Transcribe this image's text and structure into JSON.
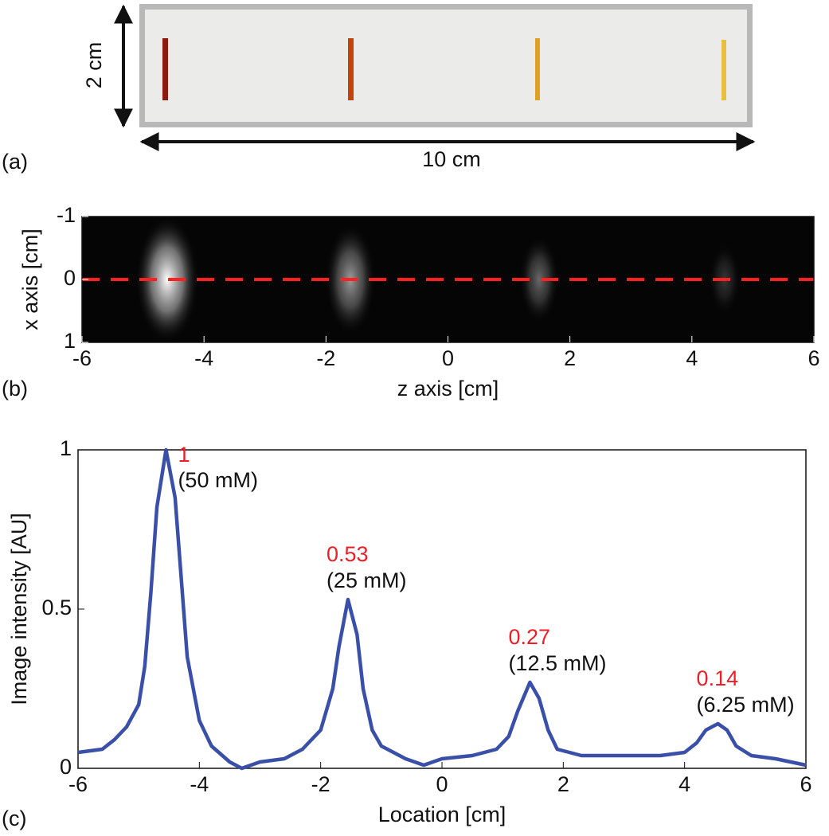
{
  "panel_a": {
    "label": "(a)",
    "height_label": "2 cm",
    "width_label": "10 cm"
  },
  "chart_data": [
    {
      "type": "image",
      "label": "(b)",
      "x_label": "z axis [cm]",
      "y_label": "x axis [cm]",
      "xlim": [
        -6,
        6
      ],
      "xticks": [
        -6,
        -4,
        -2,
        0,
        2,
        4,
        6
      ],
      "ylim": [
        1,
        -1
      ],
      "yticks": [
        -1,
        0,
        1
      ],
      "cut_line": {
        "value": 0,
        "color": "#ff2020"
      }
    },
    {
      "type": "line",
      "label": "(c)",
      "x_label": "Location [cm]",
      "y_label": "Image intensity [AU]",
      "xlim": [
        -6,
        6
      ],
      "xticks": [
        -6,
        -4,
        -2,
        0,
        2,
        4,
        6
      ],
      "ylim": [
        0,
        1
      ],
      "yticks": [
        0,
        0.5,
        1
      ],
      "color": "#3a4fa8",
      "x": [
        -6,
        -5.6,
        -5.4,
        -5.2,
        -5.0,
        -4.9,
        -4.8,
        -4.7,
        -4.55,
        -4.4,
        -4.3,
        -4.2,
        -4.0,
        -3.8,
        -3.5,
        -3.3,
        -3.0,
        -2.6,
        -2.3,
        -2.0,
        -1.8,
        -1.7,
        -1.55,
        -1.4,
        -1.3,
        -1.15,
        -1.0,
        -0.6,
        -0.3,
        0,
        0.5,
        0.9,
        1.1,
        1.25,
        1.45,
        1.6,
        1.75,
        1.9,
        2.3,
        3.0,
        3.6,
        4.0,
        4.2,
        4.35,
        4.55,
        4.7,
        4.85,
        5.1,
        5.5,
        6
      ],
      "values": [
        0.05,
        0.06,
        0.09,
        0.13,
        0.2,
        0.32,
        0.55,
        0.82,
        1.0,
        0.85,
        0.6,
        0.35,
        0.15,
        0.07,
        0.02,
        0.0,
        0.02,
        0.03,
        0.06,
        0.12,
        0.25,
        0.38,
        0.53,
        0.42,
        0.25,
        0.12,
        0.07,
        0.03,
        0.01,
        0.03,
        0.04,
        0.06,
        0.1,
        0.18,
        0.27,
        0.22,
        0.12,
        0.06,
        0.04,
        0.04,
        0.04,
        0.05,
        0.08,
        0.12,
        0.14,
        0.12,
        0.07,
        0.04,
        0.03,
        0.01
      ],
      "annotations": [
        {
          "x": -4.55,
          "y": 1,
          "label": "(50 mM)"
        },
        {
          "x": -1.55,
          "y": 0.53,
          "label": "(25 mM)"
        },
        {
          "x": 1.45,
          "y": 0.27,
          "label": "(12.5 mM)"
        },
        {
          "x": 4.55,
          "y": 0.14,
          "label": "(6.25 mM)"
        }
      ],
      "annotation_color": "#e8202a"
    }
  ]
}
